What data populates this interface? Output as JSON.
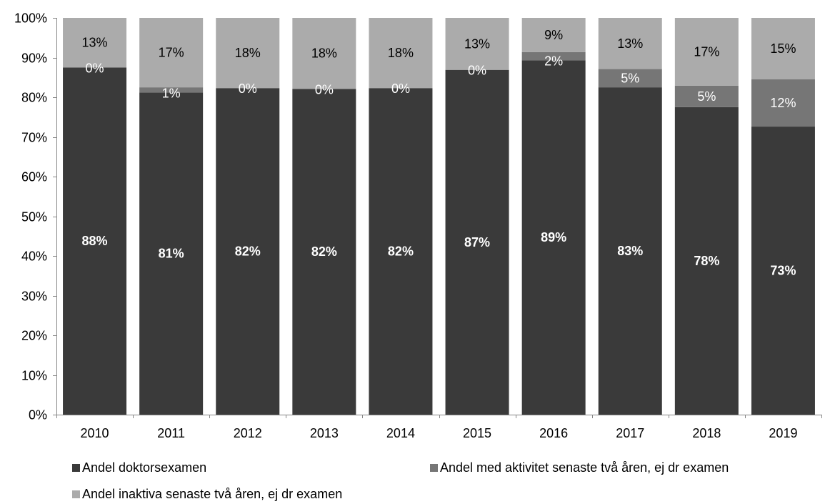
{
  "chart_data": {
    "type": "bar",
    "stacked": true,
    "categories": [
      "2010",
      "2011",
      "2012",
      "2013",
      "2014",
      "2015",
      "2016",
      "2017",
      "2018",
      "2019"
    ],
    "series": [
      {
        "name": "Andel doktorsexamen",
        "color": "#3a3a3a",
        "values": [
          87.5,
          81.2,
          82.3,
          82.1,
          82.3,
          86.9,
          89.3,
          82.5,
          77.5,
          72.6
        ],
        "labels": [
          "88%",
          "81%",
          "82%",
          "82%",
          "82%",
          "87%",
          "89%",
          "83%",
          "78%",
          "73%"
        ]
      },
      {
        "name": "Andel med aktivitet senaste två åren, ej dr examen",
        "color": "#767676",
        "values": [
          0,
          1.3,
          0,
          0,
          0,
          0,
          2.1,
          4.6,
          5.4,
          11.9
        ],
        "labels": [
          "0%",
          "1%",
          "0%",
          "0%",
          "0%",
          "0%",
          "2%",
          "5%",
          "5%",
          "12%"
        ]
      },
      {
        "name": "Andel inaktiva senaste två åren, ej dr examen",
        "color": "#ababab",
        "values": [
          12.5,
          17.5,
          17.7,
          17.9,
          17.7,
          13.1,
          8.6,
          12.9,
          17.1,
          15.5
        ],
        "labels": [
          "13%",
          "17%",
          "18%",
          "18%",
          "18%",
          "13%",
          "9%",
          "13%",
          "17%",
          "15%"
        ]
      }
    ],
    "ylim": [
      0,
      100
    ],
    "yticks": [
      "0%",
      "10%",
      "20%",
      "30%",
      "40%",
      "50%",
      "60%",
      "70%",
      "80%",
      "90%",
      "100%"
    ],
    "grid": false,
    "legend_position": "bottom",
    "title": "",
    "xlabel": "",
    "ylabel": ""
  }
}
